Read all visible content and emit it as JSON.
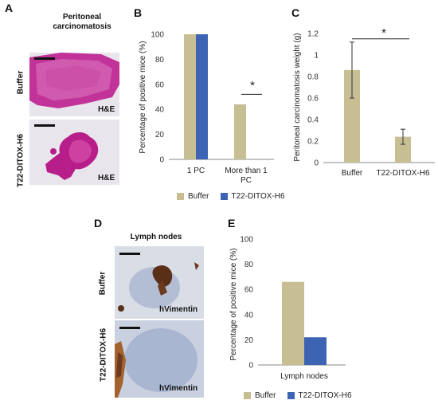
{
  "panel_labels": {
    "A": "A",
    "B": "B",
    "C": "C",
    "D": "D",
    "E": "E"
  },
  "panelA": {
    "title": "Peritoneal carcinomatosis",
    "rows": [
      "Buffer",
      "T22-DITOX-H6"
    ],
    "stain": "H&E",
    "colors": {
      "tissue": "#c2339a",
      "tissue_light": "#d87ac0",
      "background": "#e8e6ec"
    }
  },
  "panelD": {
    "title": "Lymph nodes",
    "rows": [
      "Buffer",
      "T22-DITOX-H6"
    ],
    "stain": "hVimentin",
    "colors": {
      "background": "#d9dde6",
      "nuclei": "#7a8fb5",
      "positive": "#5a2f18"
    }
  },
  "colors": {
    "buffer": "#c7bf93",
    "t22": "#3d64b3",
    "axis": "#888888"
  },
  "legend": {
    "buffer": "Buffer",
    "t22": "T22-DITOX-H6"
  },
  "chart_data": [
    {
      "id": "B",
      "type": "bar",
      "ylabel": "Percentage of positive mice (%)",
      "ylim": [
        0,
        100
      ],
      "yticks": [
        "0",
        "20",
        "40",
        "60",
        "80",
        "100"
      ],
      "categories": [
        "1 PC",
        "More than 1 PC"
      ],
      "category_lines": [
        [
          "1 PC"
        ],
        [
          "More than 1",
          "PC"
        ]
      ],
      "series": [
        {
          "name": "Buffer",
          "values": [
            100,
            44
          ]
        },
        {
          "name": "T22-DITOX-H6",
          "values": [
            100,
            0
          ]
        }
      ],
      "annotations": [
        {
          "text": "*",
          "category": "More than 1 PC"
        }
      ]
    },
    {
      "id": "C",
      "type": "bar",
      "ylabel": "Peritoneal carcinomatosis weight (g)",
      "ylim": [
        0,
        1.2
      ],
      "yticks": [
        "0",
        "0.2",
        "0.4",
        "0.6",
        "0.8",
        "1",
        "1.2"
      ],
      "categories": [
        "Buffer",
        "T22-DITOX-H6"
      ],
      "values": [
        0.86,
        0.24
      ],
      "errors": [
        0.26,
        0.07
      ],
      "annotations": [
        {
          "text": "*",
          "between": [
            "Buffer",
            "T22-DITOX-H6"
          ]
        }
      ]
    },
    {
      "id": "E",
      "type": "bar",
      "ylabel": "Percentage of positive mice (%)",
      "ylim": [
        0,
        100
      ],
      "yticks": [
        "0",
        "20",
        "40",
        "60",
        "80",
        "100"
      ],
      "categories": [
        "Lymph nodes"
      ],
      "series": [
        {
          "name": "Buffer",
          "values": [
            66
          ]
        },
        {
          "name": "T22-DITOX-H6",
          "values": [
            22
          ]
        }
      ]
    }
  ]
}
